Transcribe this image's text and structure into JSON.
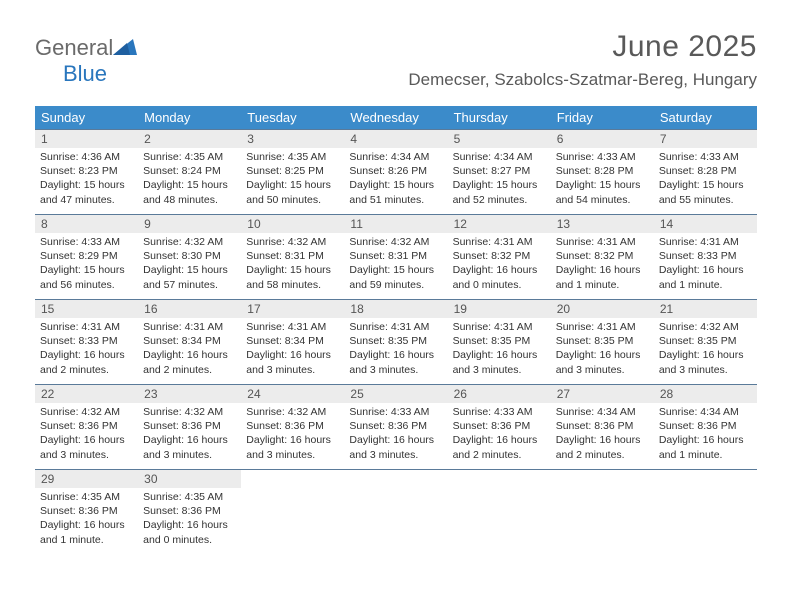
{
  "logo": {
    "text1": "General",
    "text2": "Blue",
    "text1_color": "#6a6a6a",
    "text2_color": "#2976bd",
    "shape_color": "#2976bd"
  },
  "header": {
    "month": "June 2025",
    "location": "Demecser, Szabolcs-Szatmar-Bereg, Hungary"
  },
  "colors": {
    "header_bg": "#3b8bca",
    "header_text": "#ffffff",
    "daynum_bg": "#ececec",
    "border": "#5a7a99"
  },
  "day_names": [
    "Sunday",
    "Monday",
    "Tuesday",
    "Wednesday",
    "Thursday",
    "Friday",
    "Saturday"
  ],
  "days": [
    {
      "n": "1",
      "sunrise": "4:36 AM",
      "sunset": "8:23 PM",
      "daylight": "15 hours and 47 minutes."
    },
    {
      "n": "2",
      "sunrise": "4:35 AM",
      "sunset": "8:24 PM",
      "daylight": "15 hours and 48 minutes."
    },
    {
      "n": "3",
      "sunrise": "4:35 AM",
      "sunset": "8:25 PM",
      "daylight": "15 hours and 50 minutes."
    },
    {
      "n": "4",
      "sunrise": "4:34 AM",
      "sunset": "8:26 PM",
      "daylight": "15 hours and 51 minutes."
    },
    {
      "n": "5",
      "sunrise": "4:34 AM",
      "sunset": "8:27 PM",
      "daylight": "15 hours and 52 minutes."
    },
    {
      "n": "6",
      "sunrise": "4:33 AM",
      "sunset": "8:28 PM",
      "daylight": "15 hours and 54 minutes."
    },
    {
      "n": "7",
      "sunrise": "4:33 AM",
      "sunset": "8:28 PM",
      "daylight": "15 hours and 55 minutes."
    },
    {
      "n": "8",
      "sunrise": "4:33 AM",
      "sunset": "8:29 PM",
      "daylight": "15 hours and 56 minutes."
    },
    {
      "n": "9",
      "sunrise": "4:32 AM",
      "sunset": "8:30 PM",
      "daylight": "15 hours and 57 minutes."
    },
    {
      "n": "10",
      "sunrise": "4:32 AM",
      "sunset": "8:31 PM",
      "daylight": "15 hours and 58 minutes."
    },
    {
      "n": "11",
      "sunrise": "4:32 AM",
      "sunset": "8:31 PM",
      "daylight": "15 hours and 59 minutes."
    },
    {
      "n": "12",
      "sunrise": "4:31 AM",
      "sunset": "8:32 PM",
      "daylight": "16 hours and 0 minutes."
    },
    {
      "n": "13",
      "sunrise": "4:31 AM",
      "sunset": "8:32 PM",
      "daylight": "16 hours and 1 minute."
    },
    {
      "n": "14",
      "sunrise": "4:31 AM",
      "sunset": "8:33 PM",
      "daylight": "16 hours and 1 minute."
    },
    {
      "n": "15",
      "sunrise": "4:31 AM",
      "sunset": "8:33 PM",
      "daylight": "16 hours and 2 minutes."
    },
    {
      "n": "16",
      "sunrise": "4:31 AM",
      "sunset": "8:34 PM",
      "daylight": "16 hours and 2 minutes."
    },
    {
      "n": "17",
      "sunrise": "4:31 AM",
      "sunset": "8:34 PM",
      "daylight": "16 hours and 3 minutes."
    },
    {
      "n": "18",
      "sunrise": "4:31 AM",
      "sunset": "8:35 PM",
      "daylight": "16 hours and 3 minutes."
    },
    {
      "n": "19",
      "sunrise": "4:31 AM",
      "sunset": "8:35 PM",
      "daylight": "16 hours and 3 minutes."
    },
    {
      "n": "20",
      "sunrise": "4:31 AM",
      "sunset": "8:35 PM",
      "daylight": "16 hours and 3 minutes."
    },
    {
      "n": "21",
      "sunrise": "4:32 AM",
      "sunset": "8:35 PM",
      "daylight": "16 hours and 3 minutes."
    },
    {
      "n": "22",
      "sunrise": "4:32 AM",
      "sunset": "8:36 PM",
      "daylight": "16 hours and 3 minutes."
    },
    {
      "n": "23",
      "sunrise": "4:32 AM",
      "sunset": "8:36 PM",
      "daylight": "16 hours and 3 minutes."
    },
    {
      "n": "24",
      "sunrise": "4:32 AM",
      "sunset": "8:36 PM",
      "daylight": "16 hours and 3 minutes."
    },
    {
      "n": "25",
      "sunrise": "4:33 AM",
      "sunset": "8:36 PM",
      "daylight": "16 hours and 3 minutes."
    },
    {
      "n": "26",
      "sunrise": "4:33 AM",
      "sunset": "8:36 PM",
      "daylight": "16 hours and 2 minutes."
    },
    {
      "n": "27",
      "sunrise": "4:34 AM",
      "sunset": "8:36 PM",
      "daylight": "16 hours and 2 minutes."
    },
    {
      "n": "28",
      "sunrise": "4:34 AM",
      "sunset": "8:36 PM",
      "daylight": "16 hours and 1 minute."
    },
    {
      "n": "29",
      "sunrise": "4:35 AM",
      "sunset": "8:36 PM",
      "daylight": "16 hours and 1 minute."
    },
    {
      "n": "30",
      "sunrise": "4:35 AM",
      "sunset": "8:36 PM",
      "daylight": "16 hours and 0 minutes."
    }
  ],
  "labels": {
    "sunrise": "Sunrise:",
    "sunset": "Sunset:",
    "daylight": "Daylight:"
  }
}
